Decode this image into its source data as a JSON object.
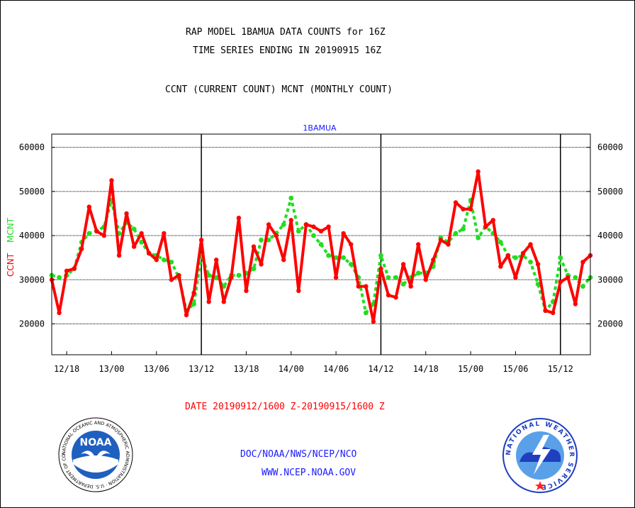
{
  "header": {
    "line1": "RAP MODEL 1BAMUA DATA COUNTS for 16Z",
    "line2": "TIME SERIES ENDING IN 20190915 16Z",
    "line3": "CCNT (CURRENT COUNT) MCNT (MONTHLY COUNT)"
  },
  "footer": {
    "date_range": "DATE 20190912/1600 Z-20190915/1600 Z",
    "org": "DOC/NOAA/NWS/NCEP/NCO",
    "url": "WWW.NCEP.NOAA.GOV"
  },
  "logos": {
    "noaa_text": "NOAA",
    "noaa_ring": "NATIONAL OCEANIC AND ATMOSPHERIC ADMINISTRATION · U.S. DEPARTMENT OF COMMERCE",
    "nws_ring": "NATIONAL WEATHER SERVICE"
  },
  "colors": {
    "ccnt": "#ff0000",
    "mcnt": "#22dd22",
    "accent_blue": "#1a1aff"
  },
  "chart_data": {
    "type": "line",
    "title": "1BAMUA",
    "ylabel_left": [
      "CCNT",
      "MCNT"
    ],
    "ylim": [
      13000,
      63000
    ],
    "yticks": [
      20000,
      30000,
      40000,
      50000,
      60000
    ],
    "xlim": [
      0,
      72
    ],
    "xticks": [
      {
        "x": 2,
        "label": "12/18"
      },
      {
        "x": 8,
        "label": "13/00"
      },
      {
        "x": 14,
        "label": "13/06"
      },
      {
        "x": 20,
        "label": "13/12"
      },
      {
        "x": 26,
        "label": "13/18"
      },
      {
        "x": 32,
        "label": "14/00"
      },
      {
        "x": 38,
        "label": "14/06"
      },
      {
        "x": 44,
        "label": "14/12"
      },
      {
        "x": 50,
        "label": "14/18"
      },
      {
        "x": 56,
        "label": "15/00"
      },
      {
        "x": 62,
        "label": "15/06"
      },
      {
        "x": 68,
        "label": "15/12"
      }
    ],
    "day_boundaries": [
      20,
      44,
      68
    ],
    "grid": true,
    "series": [
      {
        "name": "CCNT",
        "values": [
          30000,
          22500,
          32000,
          32500,
          37000,
          46500,
          41000,
          40000,
          52500,
          35500,
          45000,
          37500,
          40500,
          36000,
          34500,
          40500,
          30000,
          31000,
          22000,
          27000,
          39000,
          25000,
          34500,
          25000,
          30500,
          44000,
          27500,
          37500,
          33500,
          42500,
          40000,
          34500,
          43500,
          27500,
          42500,
          42000,
          41000,
          42000,
          30500,
          40500,
          38000,
          28500,
          28500,
          20500,
          32500,
          26500,
          26000,
          33500,
          28500,
          38000,
          30000,
          34500,
          39000,
          38000,
          47500,
          46000,
          46000,
          54500,
          42000,
          43500,
          33000,
          35500,
          30500,
          36000,
          38000,
          33500,
          23000,
          22500,
          29500,
          30500,
          24500,
          34000,
          35500
        ]
      },
      {
        "name": "MCNT",
        "values": [
          31000,
          30500,
          31000,
          32500,
          38500,
          40500,
          41000,
          42000,
          48000,
          40500,
          43000,
          41500,
          38500,
          36000,
          35500,
          34500,
          34000,
          30500,
          23000,
          24500,
          35500,
          31000,
          30500,
          28500,
          31000,
          31000,
          31500,
          32500,
          39000,
          39000,
          40500,
          42500,
          48500,
          41000,
          42500,
          40000,
          38000,
          35500,
          35000,
          35000,
          33500,
          30500,
          22500,
          24500,
          35500,
          30500,
          30500,
          29000,
          30500,
          31500,
          31500,
          33000,
          39500,
          38500,
          40500,
          41500,
          48000,
          39500,
          42000,
          40500,
          38500,
          35500,
          35000,
          35500,
          34000,
          29000,
          23000,
          25000,
          35000,
          31000,
          30500,
          28500,
          30500
        ]
      }
    ]
  }
}
